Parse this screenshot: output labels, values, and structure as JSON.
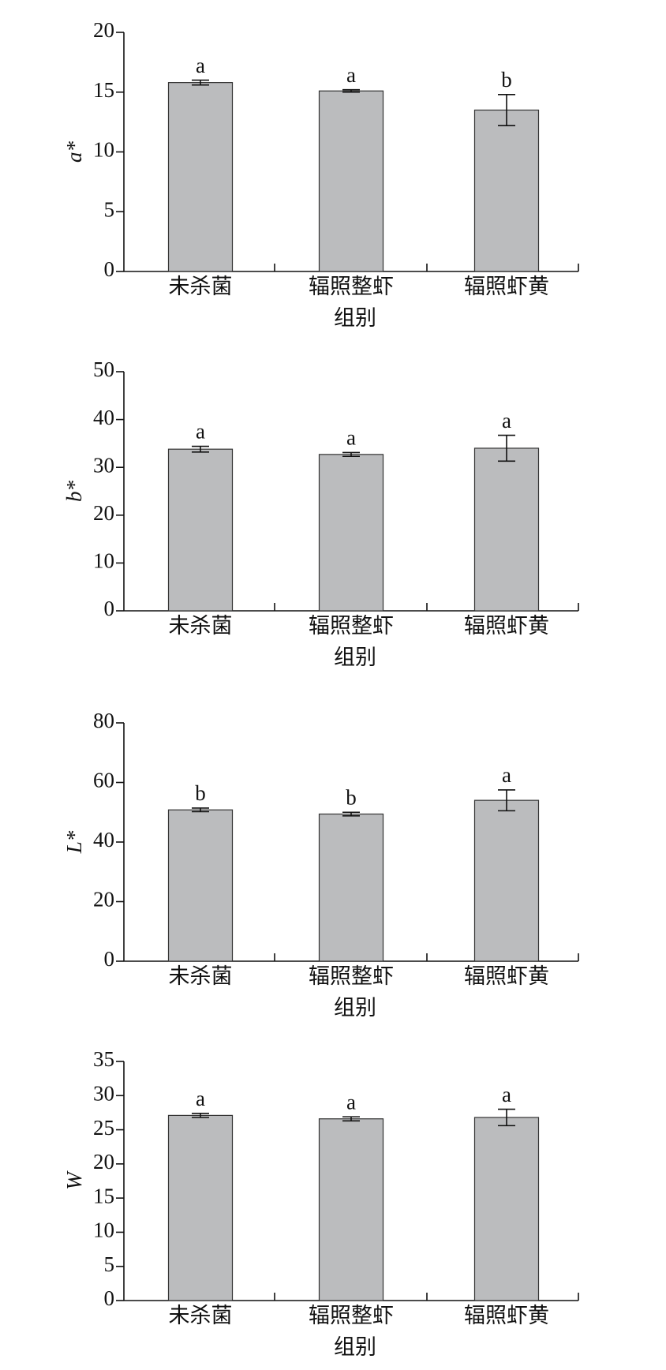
{
  "chart_data": [
    {
      "type": "bar",
      "ylabel": "a*",
      "xlabel": "组别",
      "categories": [
        "未杀菌",
        "辐照整虾",
        "辐照虾黄"
      ],
      "values": [
        15.8,
        15.1,
        13.5
      ],
      "errors": [
        0.2,
        0.1,
        1.3
      ],
      "labels": [
        "a",
        "a",
        "b"
      ],
      "color": "#bbbcbe",
      "ylim": [
        0,
        20
      ],
      "yticks": [
        0,
        5,
        10,
        15,
        20
      ]
    },
    {
      "type": "bar",
      "ylabel": "b*",
      "xlabel": "组别",
      "categories": [
        "未杀菌",
        "辐照整虾",
        "辐照虾黄"
      ],
      "values": [
        33.8,
        32.7,
        34.0
      ],
      "errors": [
        0.6,
        0.4,
        2.7
      ],
      "labels": [
        "a",
        "a",
        "a"
      ],
      "color": "#bbbcbe",
      "ylim": [
        0,
        50
      ],
      "yticks": [
        0,
        10,
        20,
        30,
        40,
        50
      ]
    },
    {
      "type": "bar",
      "ylabel": "L*",
      "xlabel": "组别",
      "categories": [
        "未杀菌",
        "辐照整虾",
        "辐照虾黄"
      ],
      "values": [
        50.8,
        49.4,
        54.0
      ],
      "errors": [
        0.6,
        0.6,
        3.5
      ],
      "labels": [
        "b",
        "b",
        "a"
      ],
      "color": "#bbbcbe",
      "ylim": [
        0,
        80
      ],
      "yticks": [
        0,
        20,
        40,
        60,
        80
      ]
    },
    {
      "type": "bar",
      "ylabel": "W",
      "xlabel": "组别",
      "categories": [
        "未杀菌",
        "辐照整虾",
        "辐照虾黄"
      ],
      "values": [
        27.1,
        26.6,
        26.8
      ],
      "errors": [
        0.3,
        0.3,
        1.2
      ],
      "labels": [
        "a",
        "a",
        "a"
      ],
      "color": "#bbbcbe",
      "ylim": [
        0,
        35
      ],
      "yticks": [
        0,
        5,
        10,
        15,
        20,
        25,
        30,
        35
      ]
    }
  ]
}
